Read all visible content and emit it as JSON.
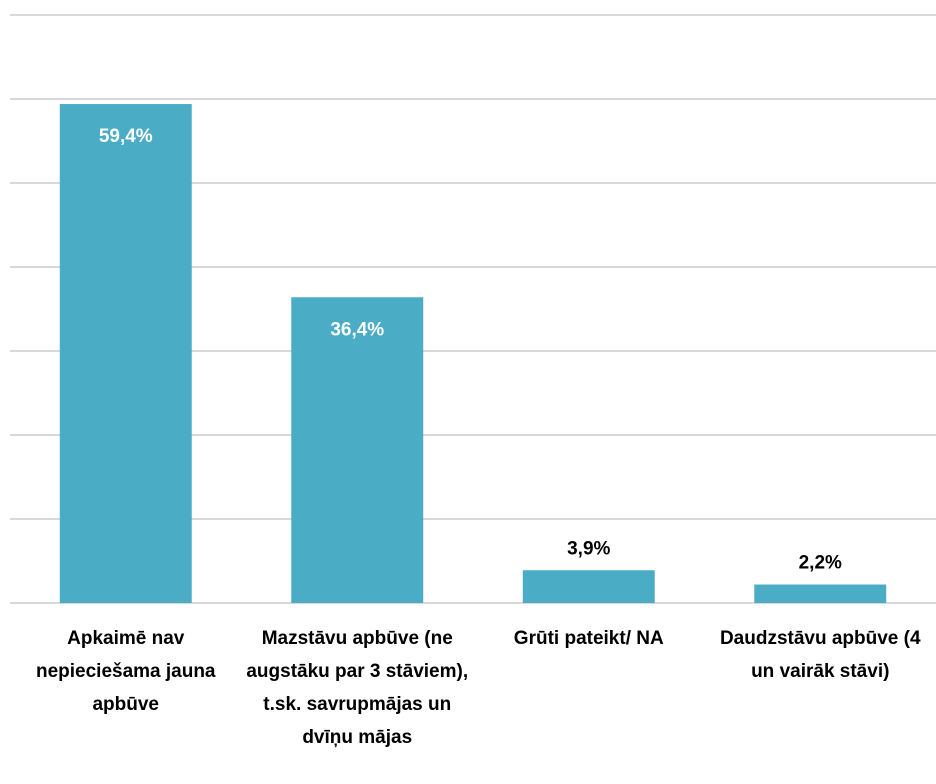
{
  "chart_data": {
    "type": "bar",
    "categories": [
      "Apkaimē nav nepieciešama jauna apbūve",
      "Mazstāvu apbūve (ne augstāku par 3 stāviem), t.sk. savrupmājas un dvīņu mājas",
      "Grūti pateikt/ NA",
      "Daudzstāvu apbūve (4 un vairāk stāvi)"
    ],
    "values": [
      59.4,
      36.4,
      3.9,
      2.2
    ],
    "value_labels": [
      "59,4%",
      "36,4%",
      "3,9%",
      "2,2%"
    ],
    "color": "#4bacc6",
    "ylim": [
      0,
      70
    ],
    "yticks": [
      0,
      10,
      20,
      30,
      40,
      50,
      60,
      70
    ],
    "grid": true
  }
}
